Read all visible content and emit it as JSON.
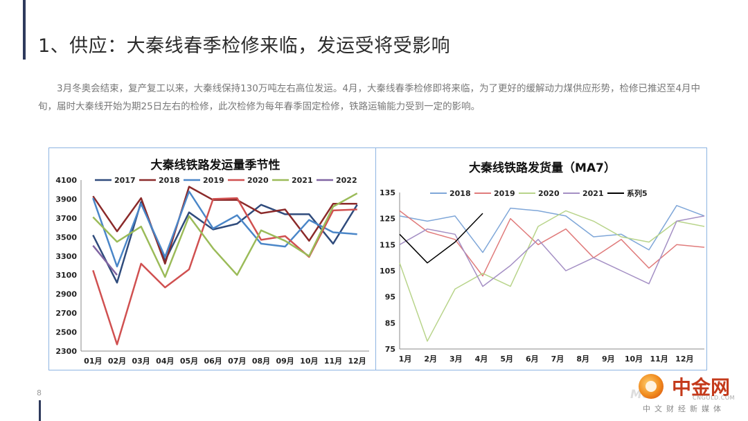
{
  "title": "1、供应：大秦线春季检修来临，发运受将受影响",
  "body": "3月冬奥会结束，复产复工以来，大秦线保持130万吨左右高位发运。4月，大秦线春季检修即将来临，为了更好的缓解动力煤供应形势，检修已推迟至4月中旬，届时大秦线开始为期25日左右的检修，此次检修为每年春季固定检修，铁路运输能力受到一定的影响。",
  "page_number": "8",
  "logo": {
    "watermark": "Mo",
    "name_cn": "中金网",
    "name_en": "CNGOLD.COM",
    "tagline": "中文财经新媒体"
  },
  "chart_data": [
    {
      "type": "line",
      "title": "大秦线铁路发运量季节性",
      "categories": [
        "01月",
        "02月",
        "03月",
        "04月",
        "05月",
        "06月",
        "07月",
        "08月",
        "09月",
        "10月",
        "11月",
        "12月"
      ],
      "ylim": [
        2300,
        4100
      ],
      "yticks": [
        2300,
        2500,
        2700,
        2900,
        3100,
        3300,
        3500,
        3700,
        3900,
        4100
      ],
      "legend_position": "top",
      "series": [
        {
          "name": "2017",
          "color": "#2f4b7c",
          "values": [
            3520,
            3020,
            3870,
            3250,
            3760,
            3580,
            3640,
            3840,
            3740,
            3740,
            3430,
            3840
          ]
        },
        {
          "name": "2018",
          "color": "#8b2a2a",
          "values": [
            3930,
            3560,
            3910,
            3220,
            4030,
            3890,
            3890,
            3750,
            3790,
            3460,
            3850,
            3850
          ]
        },
        {
          "name": "2019",
          "color": "#4a86c8",
          "values": [
            3910,
            3190,
            3850,
            3290,
            3980,
            3590,
            3730,
            3430,
            3400,
            3680,
            3550,
            3530
          ]
        },
        {
          "name": "2020",
          "color": "#d05050",
          "values": [
            3150,
            2370,
            3220,
            2970,
            3160,
            3900,
            3910,
            3470,
            3510,
            3290,
            3780,
            3790
          ]
        },
        {
          "name": "2021",
          "color": "#9bbb59",
          "values": [
            3710,
            3450,
            3610,
            3080,
            3720,
            3380,
            3100,
            3570,
            3460,
            3300,
            3820,
            3960
          ]
        },
        {
          "name": "2022",
          "color": "#8064a2",
          "values": [
            3410,
            3100,
            null,
            null,
            null,
            null,
            null,
            null,
            null,
            null,
            null,
            null
          ]
        }
      ]
    },
    {
      "type": "line",
      "title": "大秦线铁路发货量（MA7）",
      "categories": [
        "1月",
        "2月",
        "3月",
        "4月",
        "5月",
        "6月",
        "7月",
        "8月",
        "9月",
        "10月",
        "11月",
        "12月"
      ],
      "ylim": [
        75,
        135
      ],
      "yticks": [
        75,
        85,
        95,
        105,
        115,
        125,
        135
      ],
      "legend_position": "top",
      "series": [
        {
          "name": "2018",
          "color": "#7ea6d8",
          "values": [
            126,
            124,
            126,
            112,
            129,
            128,
            126,
            118,
            119,
            113,
            130,
            126
          ]
        },
        {
          "name": "2019",
          "color": "#e07b7b",
          "values": [
            128,
            120,
            117,
            103,
            125,
            115,
            121,
            110,
            117,
            106,
            115,
            114
          ]
        },
        {
          "name": "2020",
          "color": "#b8d48a",
          "values": [
            108,
            78,
            98,
            104,
            99,
            122,
            128,
            124,
            118,
            116,
            124,
            122
          ]
        },
        {
          "name": "2021",
          "color": "#a48fc4",
          "values": [
            115,
            121,
            119,
            99,
            107,
            117,
            105,
            110,
            105,
            100,
            124,
            126
          ]
        },
        {
          "name": "系列5",
          "color": "#000000",
          "values": [
            119,
            108,
            116,
            127,
            null,
            null,
            null,
            null,
            null,
            null,
            null,
            null
          ]
        }
      ]
    }
  ]
}
